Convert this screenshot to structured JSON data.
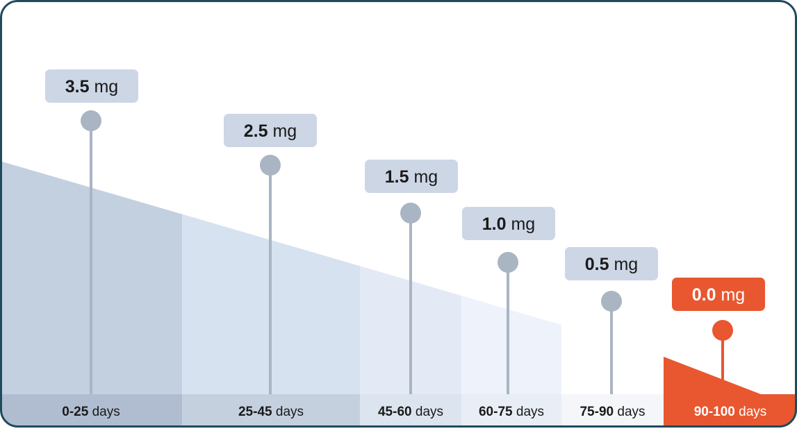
{
  "chart_data": {
    "type": "bar",
    "categories": [
      "0-25 days",
      "25-45 days",
      "45-60 days",
      "60-75 days",
      "75-90 days",
      "90-100 days"
    ],
    "category_parts": [
      {
        "range": "0-25",
        "unit": "days"
      },
      {
        "range": "25-45",
        "unit": "days"
      },
      {
        "range": "45-60",
        "unit": "days"
      },
      {
        "range": "60-75",
        "unit": "days"
      },
      {
        "range": "75-90",
        "unit": "days"
      },
      {
        "range": "90-100",
        "unit": "days"
      }
    ],
    "x_ranges": [
      [
        0,
        25
      ],
      [
        25,
        45
      ],
      [
        45,
        60
      ],
      [
        60,
        75
      ],
      [
        75,
        90
      ],
      [
        90,
        100
      ]
    ],
    "values": [
      3.5,
      2.5,
      1.5,
      1.0,
      0.5,
      0.0
    ],
    "value_labels": [
      "3.5",
      "2.5",
      "1.5",
      "1.0",
      "0.5",
      "0.0"
    ],
    "unit": "mg",
    "title": "",
    "xlabel": "",
    "ylabel": "",
    "highlight_index": 5,
    "colors": {
      "frame": "#1d4a5c",
      "band_fills": [
        "#c3d0e0",
        "#d7e2f1",
        "#e3eaf6",
        "#eef3fb",
        "#ffffff",
        "#e8572f"
      ],
      "label_fills": [
        "#b0bdd1",
        "#c5d0df",
        "#dce4ef",
        "#e9eef6",
        "#f4f6f9",
        "#e8572f"
      ],
      "pin": "#a9b5c3",
      "badge": "#ccd6e5",
      "highlight": "#e8572f",
      "text": "#1a1a1a",
      "highlight_text": "#ffffff"
    }
  }
}
